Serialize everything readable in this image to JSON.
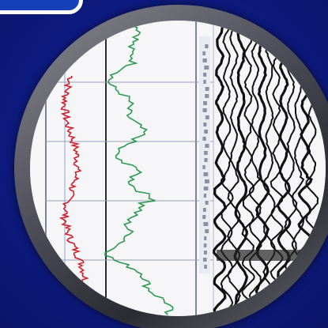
{
  "colors": {
    "background": "#0e1b82",
    "badge_border": "#ffffff",
    "lens_ring": "#4a4a55",
    "log_red": "#d21e2a",
    "log_green": "#2f9a52",
    "grid": "#9aa0b4"
  }
}
